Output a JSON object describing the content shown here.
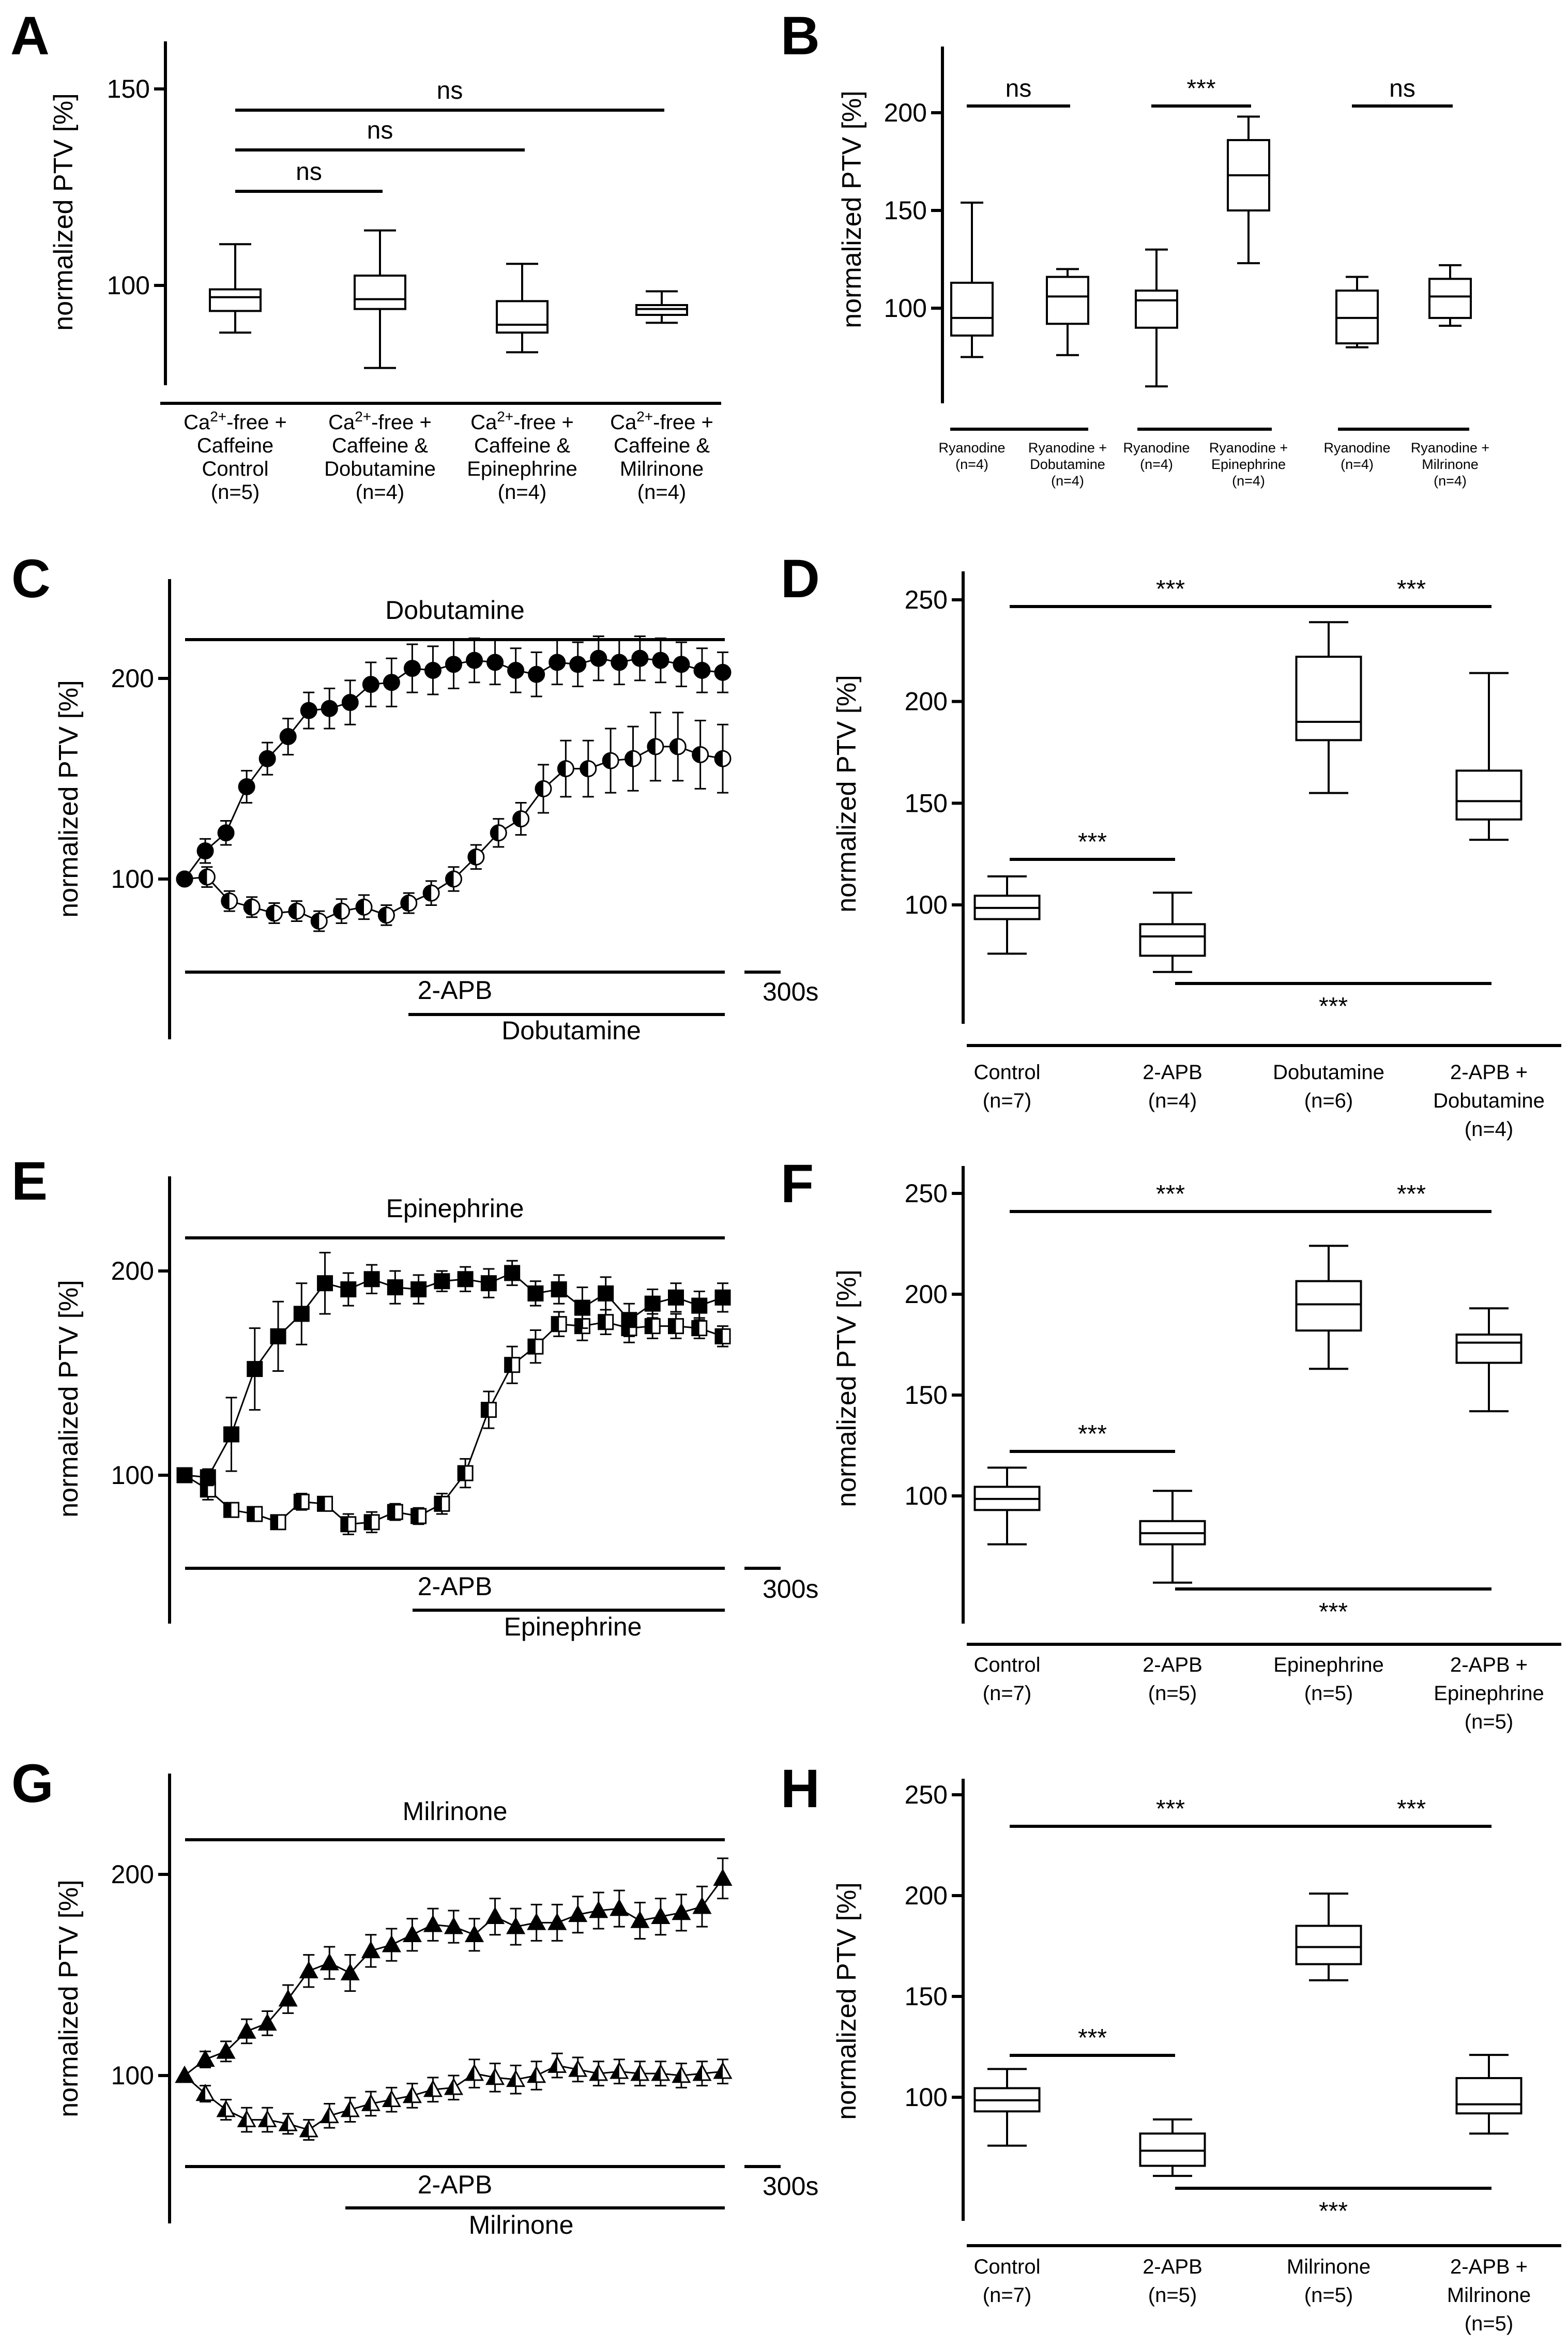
{
  "panel_labels": [
    "A",
    "B",
    "C",
    "D",
    "E",
    "F",
    "G",
    "H"
  ],
  "chart_data": [
    {
      "id": "A",
      "type": "box",
      "ylabel": "normalized PTV [%]",
      "ylim": [
        78,
        160
      ],
      "yticks": [
        100,
        150
      ],
      "categories": [
        [
          "Ca2+-free +",
          "Caffeine",
          "Control",
          "(n=5)"
        ],
        [
          "Ca2+-free +",
          "Caffeine &",
          "Dobutamine",
          "(n=4)"
        ],
        [
          "Ca2+-free +",
          "Caffeine &",
          "Epinephrine",
          "(n=4)"
        ],
        [
          "Ca2+-free +",
          "Caffeine &",
          "Milrinone",
          "(n=4)"
        ]
      ],
      "boxes": [
        {
          "min": 88,
          "q1": 93.5,
          "median": 97,
          "q3": 99,
          "max": 110.5
        },
        {
          "min": 79,
          "q1": 94,
          "median": 96.5,
          "q3": 102.5,
          "max": 114
        },
        {
          "min": 83,
          "q1": 88,
          "median": 90,
          "q3": 96,
          "max": 105.5
        },
        {
          "min": 90.5,
          "q1": 92.5,
          "median": 94,
          "q3": 95,
          "max": 98.5
        }
      ],
      "significance": [
        {
          "from": 0,
          "to": 1,
          "label": "ns"
        },
        {
          "from": 0,
          "to": 2,
          "label": "ns"
        },
        {
          "from": 0,
          "to": 3,
          "label": "ns"
        }
      ]
    },
    {
      "id": "B",
      "type": "box",
      "ylabel": "normalized PTV [%]",
      "ylim": [
        50,
        220
      ],
      "yticks": [
        100,
        150,
        200
      ],
      "categories": [
        [
          "Ryanodine",
          "(n=4)"
        ],
        [
          "Ryanodine +",
          "Dobutamine",
          "(n=4)"
        ],
        [
          "Ryanodine",
          "(n=4)"
        ],
        [
          "Ryanodine +",
          "Epinephrine",
          "(n=4)"
        ],
        [
          "Ryanodine",
          "(n=4)"
        ],
        [
          "Ryanodine +",
          "Milrinone",
          "(n=4)"
        ]
      ],
      "boxes": [
        {
          "min": 75,
          "q1": 86,
          "median": 95,
          "q3": 113,
          "max": 154
        },
        {
          "min": 76,
          "q1": 92,
          "median": 106,
          "q3": 116,
          "max": 120
        },
        {
          "min": 60,
          "q1": 90,
          "median": 104,
          "q3": 109,
          "max": 130
        },
        {
          "min": 123,
          "q1": 150,
          "median": 168,
          "q3": 186,
          "max": 198
        },
        {
          "min": 80,
          "q1": 82,
          "median": 95,
          "q3": 109,
          "max": 116
        },
        {
          "min": 91,
          "q1": 95,
          "median": 106,
          "q3": 115,
          "max": 122
        }
      ],
      "significance": [
        {
          "from": 0,
          "to": 1,
          "label": "ns"
        },
        {
          "from": 2,
          "to": 3,
          "label": "***"
        },
        {
          "from": 4,
          "to": 5,
          "label": "ns"
        }
      ]
    },
    {
      "id": "C",
      "type": "line",
      "ylabel": "normalized PTV [%]",
      "ylim": [
        30,
        245
      ],
      "yticks": [
        100,
        200
      ],
      "top_label": "Dobutamine",
      "bottom_labels": [
        "2-APB",
        "Dobutamine"
      ],
      "scale_label": "300s",
      "marker": "circle",
      "series": [
        {
          "name": "Dobutamine",
          "fill": "solid",
          "values": [
            100,
            114,
            123,
            146,
            160,
            171,
            184,
            185,
            188,
            197,
            198,
            205,
            204,
            207,
            209,
            208,
            204,
            202,
            208,
            207,
            210,
            208,
            210,
            209,
            207,
            204,
            203
          ],
          "errors": [
            0,
            6,
            6,
            8,
            8,
            9,
            9,
            10,
            11,
            11,
            12,
            12,
            12,
            12,
            11,
            11,
            11,
            11,
            11,
            11,
            11,
            11,
            11,
            11,
            11,
            11,
            10
          ]
        },
        {
          "name": "2-APB + Dobutamine",
          "fill": "half",
          "values": [
            100,
            101,
            89,
            86,
            83,
            84,
            79,
            84,
            86,
            82,
            88,
            93,
            100,
            111,
            123,
            130,
            145,
            155,
            155,
            159,
            160,
            166,
            166,
            162,
            160
          ],
          "errors": [
            0,
            5,
            5,
            5,
            5,
            5,
            5,
            6,
            6,
            5,
            5,
            6,
            6,
            6,
            7,
            8,
            12,
            14,
            14,
            16,
            16,
            17,
            17,
            17,
            17
          ]
        }
      ]
    },
    {
      "id": "D",
      "type": "box",
      "ylabel": "normalized PTV [%]",
      "ylim": [
        40,
        255
      ],
      "yticks": [
        100,
        150,
        200,
        250
      ],
      "categories": [
        [
          "Control",
          "(n=7)"
        ],
        [
          "2-APB",
          "(n=4)"
        ],
        [
          "Dobutamine",
          "(n=6)"
        ],
        [
          "2-APB +",
          "Dobutamine",
          "(n=4)"
        ]
      ],
      "boxes": [
        {
          "min": 76,
          "q1": 93,
          "median": 98.5,
          "q3": 104.5,
          "max": 114
        },
        {
          "min": 67,
          "q1": 75,
          "median": 84.5,
          "q3": 90.5,
          "max": 106
        },
        {
          "min": 155,
          "q1": 181,
          "median": 190,
          "q3": 222,
          "max": 239
        },
        {
          "min": 132,
          "q1": 142,
          "median": 151,
          "q3": 166,
          "max": 214
        }
      ],
      "significance": [
        {
          "from": 0,
          "to": 2,
          "label": "***",
          "pos": "top"
        },
        {
          "from": 2,
          "to": 3,
          "label": "***",
          "pos": "top"
        },
        {
          "from": 0,
          "to": 1,
          "label": "***",
          "pos": "top"
        },
        {
          "from": 1,
          "to": 3,
          "label": "***",
          "pos": "bottom"
        }
      ]
    },
    {
      "id": "E",
      "type": "line",
      "ylabel": "normalized PTV [%]",
      "ylim": [
        30,
        245
      ],
      "yticks": [
        100,
        200
      ],
      "top_label": "Epinephrine",
      "bottom_labels": [
        "2-APB",
        "Epinephrine"
      ],
      "scale_label": "300s",
      "marker": "square",
      "series": [
        {
          "name": "Epinephrine",
          "fill": "solid",
          "values": [
            100,
            99,
            120,
            152,
            168,
            179,
            194,
            191,
            196,
            192,
            191,
            195,
            196,
            194,
            199,
            189,
            191,
            182,
            189,
            176,
            184,
            187,
            183,
            187
          ],
          "errors": [
            0,
            4,
            18,
            20,
            17,
            15,
            15,
            8,
            7,
            8,
            7,
            5,
            6,
            7,
            6,
            6,
            7,
            10,
            8,
            8,
            7,
            7,
            7,
            7
          ]
        },
        {
          "name": "2-APB + Epinephrine",
          "fill": "half",
          "values": [
            100,
            93,
            83,
            81,
            77,
            87,
            86,
            76,
            77,
            82,
            80,
            86,
            101,
            132,
            154,
            163,
            174,
            173,
            175,
            172,
            173,
            173,
            172,
            168
          ],
          "errors": [
            0,
            5,
            3,
            3,
            3,
            4,
            3,
            5,
            5,
            4,
            4,
            5,
            7,
            9,
            9,
            8,
            6,
            7,
            6,
            7,
            6,
            6,
            5,
            5
          ]
        }
      ]
    },
    {
      "id": "F",
      "type": "box",
      "ylabel": "normalized PTV [%]",
      "ylim": [
        40,
        255
      ],
      "yticks": [
        100,
        150,
        200,
        250
      ],
      "categories": [
        [
          "Control",
          "(n=7)"
        ],
        [
          "2-APB",
          "(n=5)"
        ],
        [
          "Epinephrine",
          "(n=5)"
        ],
        [
          "2-APB +",
          "Epinephrine",
          "(n=5)"
        ]
      ],
      "boxes": [
        {
          "min": 76,
          "q1": 93,
          "median": 98.5,
          "q3": 104.5,
          "max": 114
        },
        {
          "min": 57,
          "q1": 76,
          "median": 81.5,
          "q3": 87.5,
          "max": 102.5
        },
        {
          "min": 163,
          "q1": 182,
          "median": 195,
          "q3": 206.5,
          "max": 224
        },
        {
          "min": 142,
          "q1": 166,
          "median": 176,
          "q3": 180,
          "max": 193
        }
      ],
      "significance": [
        {
          "from": 0,
          "to": 2,
          "label": "***",
          "pos": "top"
        },
        {
          "from": 2,
          "to": 3,
          "label": "***",
          "pos": "top"
        },
        {
          "from": 0,
          "to": 1,
          "label": "***",
          "pos": "top"
        },
        {
          "from": 1,
          "to": 3,
          "label": "***",
          "pos": "bottom"
        }
      ]
    },
    {
      "id": "G",
      "type": "line",
      "ylabel": "normalized PTV [%]",
      "ylim": [
        30,
        245
      ],
      "yticks": [
        100,
        200
      ],
      "top_label": "Milrinone",
      "bottom_labels": [
        "2-APB",
        "Milrinone"
      ],
      "scale_label": "300s",
      "marker": "triangle",
      "series": [
        {
          "name": "Milrinone",
          "fill": "solid",
          "values": [
            100,
            108,
            112,
            122,
            126,
            138,
            152,
            156,
            151,
            162,
            165,
            170,
            175,
            174,
            170,
            179,
            174,
            176,
            176,
            180,
            182,
            183,
            177,
            179,
            181,
            184,
            198
          ],
          "errors": [
            0,
            4,
            5,
            6,
            6,
            7,
            8,
            8,
            9,
            8,
            8,
            8,
            8,
            8,
            8,
            9,
            9,
            9,
            9,
            9,
            9,
            9,
            9,
            9,
            9,
            10,
            10
          ]
        },
        {
          "name": "2-APB + Milrinone",
          "fill": "half",
          "values": [
            100,
            91,
            83,
            78,
            78,
            76,
            73,
            80,
            83,
            86,
            88,
            90,
            93,
            94,
            101,
            99,
            98,
            100,
            105,
            103,
            101,
            102,
            101,
            101,
            100,
            101,
            102
          ],
          "errors": [
            0,
            4,
            5,
            6,
            6,
            5,
            5,
            6,
            6,
            6,
            6,
            6,
            6,
            6,
            7,
            7,
            7,
            7,
            6,
            6,
            6,
            6,
            6,
            6,
            6,
            6,
            6
          ]
        }
      ]
    },
    {
      "id": "H",
      "type": "box",
      "ylabel": "normalized PTV [%]",
      "ylim": [
        40,
        255
      ],
      "yticks": [
        100,
        150,
        200,
        250
      ],
      "categories": [
        [
          "Control",
          "(n=7)"
        ],
        [
          "2-APB",
          "(n=5)"
        ],
        [
          "Milrinone",
          "(n=5)"
        ],
        [
          "2-APB +",
          "Milrinone",
          "(n=5)"
        ]
      ],
      "boxes": [
        {
          "min": 76,
          "q1": 93,
          "median": 98.5,
          "q3": 104.5,
          "max": 114
        },
        {
          "min": 61,
          "q1": 66,
          "median": 73.5,
          "q3": 82,
          "max": 89
        },
        {
          "min": 158,
          "q1": 166,
          "median": 174.5,
          "q3": 185,
          "max": 201
        },
        {
          "min": 82,
          "q1": 92,
          "median": 96.5,
          "q3": 109.5,
          "max": 121
        }
      ],
      "significance": [
        {
          "from": 0,
          "to": 2,
          "label": "***",
          "pos": "top"
        },
        {
          "from": 2,
          "to": 3,
          "label": "***",
          "pos": "top"
        },
        {
          "from": 0,
          "to": 1,
          "label": "***",
          "pos": "top"
        },
        {
          "from": 1,
          "to": 3,
          "label": "***",
          "pos": "bottom"
        }
      ]
    }
  ]
}
